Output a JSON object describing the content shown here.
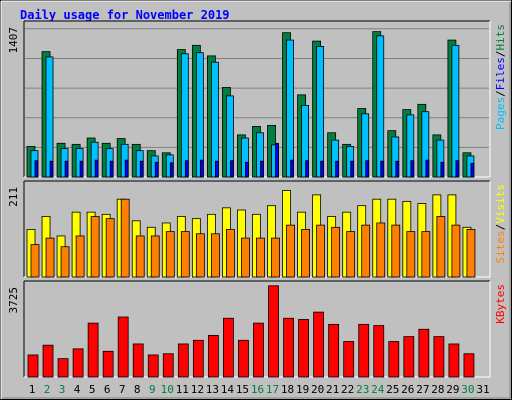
{
  "title": "Daily usage for November 2019",
  "colors": {
    "background": "#c0c0c0",
    "plot_bg": "#c0c0c0",
    "title": "#0000ff",
    "hits": "#008040",
    "files": "#00c0ff",
    "pages": "#0000ff",
    "visits": "#ffff00",
    "sites": "#ff8000",
    "kbytes": "#ff0000",
    "weekend_day": "#008040",
    "weekday": "#000000"
  },
  "chart_data": [
    {
      "type": "bar",
      "title": "Daily usage for November 2019",
      "ymax_label": "1407",
      "ylim": [
        0,
        1407
      ],
      "legend": [
        {
          "text": "Pages",
          "color": "#00c0ff"
        },
        {
          "text": "/",
          "color": "#000000"
        },
        {
          "text": "Files",
          "color": "#0000ff"
        },
        {
          "text": "/",
          "color": "#000000"
        },
        {
          "text": "Hits",
          "color": "#008040"
        }
      ],
      "categories": [
        "1",
        "2",
        "3",
        "4",
        "5",
        "6",
        "7",
        "8",
        "9",
        "10",
        "11",
        "12",
        "13",
        "14",
        "15",
        "16",
        "17",
        "18",
        "19",
        "20",
        "21",
        "22",
        "23",
        "24",
        "25",
        "26",
        "27",
        "28",
        "29",
        "30",
        "31"
      ],
      "series": [
        {
          "name": "Hits",
          "color": "#008040",
          "values": [
            290,
            1190,
            320,
            310,
            370,
            320,
            365,
            310,
            250,
            230,
            1210,
            1250,
            1150,
            850,
            400,
            480,
            490,
            1370,
            780,
            1290,
            420,
            310,
            650,
            1380,
            440,
            640,
            690,
            400,
            1300,
            230,
            0
          ]
        },
        {
          "name": "Files",
          "color": "#00c0ff",
          "values": [
            250,
            1140,
            270,
            270,
            330,
            270,
            310,
            250,
            200,
            210,
            1170,
            1180,
            1090,
            770,
            370,
            420,
            305,
            1300,
            680,
            1240,
            350,
            290,
            600,
            1340,
            380,
            590,
            620,
            350,
            1250,
            200,
            0
          ]
        },
        {
          "name": "Pages",
          "color": "#0000ff",
          "values": [
            155,
            150,
            150,
            150,
            160,
            150,
            160,
            150,
            140,
            135,
            155,
            160,
            150,
            155,
            140,
            150,
            320,
            160,
            155,
            150,
            150,
            150,
            155,
            150,
            150,
            155,
            160,
            140,
            155,
            130,
            0
          ]
        }
      ]
    },
    {
      "type": "bar",
      "ymax_label": "211",
      "ylim": [
        0,
        211
      ],
      "legend": [
        {
          "text": "Sites",
          "color": "#ff8000"
        },
        {
          "text": "/",
          "color": "#000000"
        },
        {
          "text": "Visits",
          "color": "#ffff00"
        }
      ],
      "categories": [
        "1",
        "2",
        "3",
        "4",
        "5",
        "6",
        "7",
        "8",
        "9",
        "10",
        "11",
        "12",
        "13",
        "14",
        "15",
        "16",
        "17",
        "18",
        "19",
        "20",
        "21",
        "22",
        "23",
        "24",
        "25",
        "26",
        "27",
        "28",
        "29",
        "30",
        "31"
      ],
      "series": [
        {
          "name": "Visits",
          "color": "#ffff00",
          "values": [
            110,
            140,
            95,
            150,
            150,
            145,
            180,
            130,
            115,
            125,
            140,
            135,
            145,
            160,
            155,
            145,
            165,
            200,
            150,
            190,
            140,
            150,
            165,
            180,
            180,
            175,
            170,
            190,
            190,
            115,
            0
          ]
        },
        {
          "name": "Sites",
          "color": "#ff8000",
          "values": [
            75,
            90,
            70,
            95,
            140,
            135,
            180,
            95,
            95,
            105,
            105,
            100,
            100,
            110,
            90,
            90,
            90,
            120,
            110,
            120,
            115,
            105,
            120,
            125,
            120,
            105,
            105,
            140,
            120,
            110,
            0
          ]
        }
      ]
    },
    {
      "type": "bar",
      "ymax_label": "3725",
      "ylim": [
        0,
        3725
      ],
      "legend": [
        {
          "text": "KBytes",
          "color": "#ff0000"
        }
      ],
      "categories": [
        "1",
        "2",
        "3",
        "4",
        "5",
        "6",
        "7",
        "8",
        "9",
        "10",
        "11",
        "12",
        "13",
        "14",
        "15",
        "16",
        "17",
        "18",
        "19",
        "20",
        "21",
        "22",
        "23",
        "24",
        "25",
        "26",
        "27",
        "28",
        "29",
        "30",
        "31"
      ],
      "series": [
        {
          "name": "KBytes",
          "color": "#ff0000",
          "values": [
            900,
            1300,
            750,
            1150,
            2200,
            1050,
            2450,
            1350,
            900,
            950,
            1350,
            1500,
            1700,
            2400,
            1500,
            2200,
            3725,
            2400,
            2350,
            2650,
            2150,
            1450,
            2150,
            2100,
            1450,
            1650,
            1950,
            1650,
            1350,
            950,
            0
          ]
        }
      ]
    }
  ],
  "x_labels": [
    {
      "text": "1",
      "weekend": false
    },
    {
      "text": "2",
      "weekend": true
    },
    {
      "text": "3",
      "weekend": true
    },
    {
      "text": "4",
      "weekend": false
    },
    {
      "text": "5",
      "weekend": false
    },
    {
      "text": "6",
      "weekend": false
    },
    {
      "text": "7",
      "weekend": false
    },
    {
      "text": "8",
      "weekend": false
    },
    {
      "text": "9",
      "weekend": true
    },
    {
      "text": "10",
      "weekend": true
    },
    {
      "text": "11",
      "weekend": false
    },
    {
      "text": "12",
      "weekend": false
    },
    {
      "text": "13",
      "weekend": false
    },
    {
      "text": "14",
      "weekend": false
    },
    {
      "text": "15",
      "weekend": false
    },
    {
      "text": "16",
      "weekend": true
    },
    {
      "text": "17",
      "weekend": true
    },
    {
      "text": "18",
      "weekend": false
    },
    {
      "text": "19",
      "weekend": false
    },
    {
      "text": "20",
      "weekend": false
    },
    {
      "text": "21",
      "weekend": false
    },
    {
      "text": "22",
      "weekend": false
    },
    {
      "text": "23",
      "weekend": true
    },
    {
      "text": "24",
      "weekend": true
    },
    {
      "text": "25",
      "weekend": false
    },
    {
      "text": "26",
      "weekend": false
    },
    {
      "text": "27",
      "weekend": false
    },
    {
      "text": "28",
      "weekend": false
    },
    {
      "text": "29",
      "weekend": false
    },
    {
      "text": "30",
      "weekend": true
    },
    {
      "text": "31",
      "weekend": false
    }
  ]
}
